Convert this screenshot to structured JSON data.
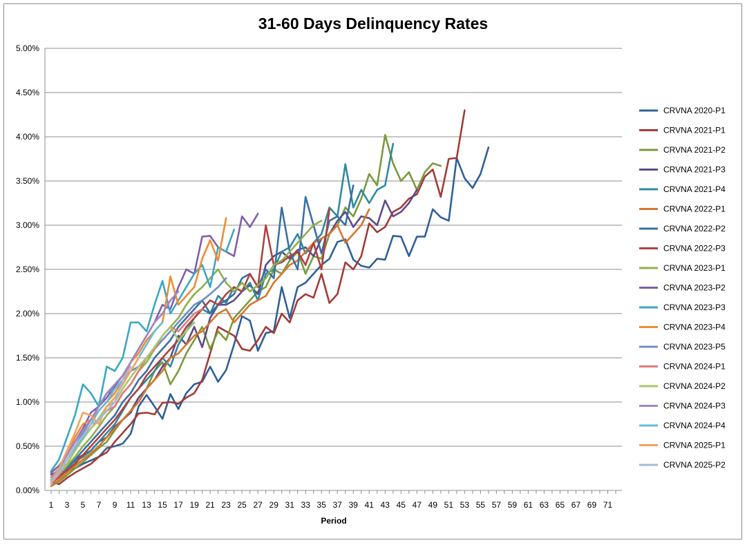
{
  "chart_data": {
    "type": "line",
    "title": "31-60 Days Delinquency Rates",
    "xlabel": "Period",
    "ylabel": "",
    "xlim": [
      1,
      72
    ],
    "ylim": [
      0,
      0.05
    ],
    "grid": true,
    "legend_position": "right",
    "y_ticks": [
      {
        "value": 0.0,
        "label": "0.00%"
      },
      {
        "value": 0.005,
        "label": "0.50%"
      },
      {
        "value": 0.01,
        "label": "1.00%"
      },
      {
        "value": 0.015,
        "label": "1.50%"
      },
      {
        "value": 0.02,
        "label": "2.00%"
      },
      {
        "value": 0.025,
        "label": "2.50%"
      },
      {
        "value": 0.03,
        "label": "3.00%"
      },
      {
        "value": 0.035,
        "label": "3.50%"
      },
      {
        "value": 0.04,
        "label": "4.00%"
      },
      {
        "value": 0.045,
        "label": "4.50%"
      },
      {
        "value": 0.05,
        "label": "5.00%"
      }
    ],
    "x_ticks": [
      1,
      3,
      5,
      7,
      9,
      11,
      13,
      15,
      17,
      19,
      21,
      23,
      25,
      27,
      29,
      31,
      33,
      35,
      37,
      39,
      41,
      43,
      45,
      47,
      49,
      51,
      53,
      55,
      57,
      59,
      61,
      63,
      65,
      67,
      69,
      71
    ],
    "series": [
      {
        "name": "CRVNA 2020-P1",
        "color": "#2f5f98",
        "values": [
          0.0012,
          0.0018,
          0.0022,
          0.0025,
          0.003,
          0.0034,
          0.0038,
          0.0048,
          0.005,
          0.0053,
          0.0064,
          0.0095,
          0.0108,
          0.0095,
          0.0081,
          0.0109,
          0.0092,
          0.011,
          0.012,
          0.0123,
          0.014,
          0.0123,
          0.0136,
          0.0165,
          0.0197,
          0.0192,
          0.0158,
          0.0178,
          0.018,
          0.023,
          0.0195,
          0.023,
          0.0235,
          0.0245,
          0.0255,
          0.0262,
          0.0281,
          0.0284,
          0.0261,
          0.0254,
          0.0252,
          0.0262,
          0.0261,
          0.0288,
          0.0287,
          0.0265,
          0.0287,
          0.0287,
          0.0318,
          0.0309,
          0.0305,
          0.0376,
          0.0353,
          0.0342,
          0.0358,
          0.0388
        ]
      },
      {
        "name": "CRVNA 2021-P1",
        "color": "#a23b36",
        "values": [
          0.001,
          0.0007,
          0.0014,
          0.002,
          0.0025,
          0.003,
          0.0038,
          0.0043,
          0.0055,
          0.0065,
          0.0075,
          0.0087,
          0.0088,
          0.0086,
          0.0099,
          0.01,
          0.0098,
          0.0105,
          0.011,
          0.0125,
          0.0155,
          0.0185,
          0.018,
          0.0175,
          0.016,
          0.0158,
          0.017,
          0.0185,
          0.0178,
          0.02,
          0.019,
          0.0215,
          0.0222,
          0.0218,
          0.0245,
          0.0212,
          0.0222,
          0.0258,
          0.025,
          0.0265,
          0.0302,
          0.0292,
          0.0298,
          0.0315,
          0.032,
          0.033,
          0.0335,
          0.0355,
          0.0363,
          0.0332,
          0.0375,
          0.0376,
          0.043
        ]
      },
      {
        "name": "CRVNA 2021-P2",
        "color": "#7a9a3c",
        "values": [
          0.0005,
          0.001,
          0.0017,
          0.0025,
          0.0032,
          0.004,
          0.0048,
          0.0055,
          0.0068,
          0.008,
          0.009,
          0.0105,
          0.0115,
          0.0135,
          0.0145,
          0.012,
          0.0135,
          0.0155,
          0.017,
          0.0185,
          0.016,
          0.018,
          0.017,
          0.0195,
          0.0205,
          0.0215,
          0.0225,
          0.023,
          0.025,
          0.0245,
          0.026,
          0.027,
          0.0245,
          0.0265,
          0.0262,
          0.029,
          0.03,
          0.032,
          0.031,
          0.033,
          0.0358,
          0.0345,
          0.0402,
          0.037,
          0.035,
          0.036,
          0.034,
          0.036,
          0.037,
          0.0367
        ]
      },
      {
        "name": "CRVNA 2021-P3",
        "color": "#5e4a8a",
        "values": [
          0.0018,
          0.0022,
          0.003,
          0.0035,
          0.004,
          0.0045,
          0.0055,
          0.006,
          0.0072,
          0.008,
          0.0088,
          0.0105,
          0.0115,
          0.0125,
          0.014,
          0.015,
          0.0175,
          0.0165,
          0.0185,
          0.0162,
          0.0195,
          0.021,
          0.021,
          0.0215,
          0.0225,
          0.0232,
          0.0222,
          0.0255,
          0.0265,
          0.027,
          0.0262,
          0.0272,
          0.0275,
          0.0265,
          0.0285,
          0.029,
          0.0305,
          0.0315,
          0.0298,
          0.031,
          0.0308,
          0.03,
          0.0328,
          0.031,
          0.0315,
          0.0325,
          0.034
        ]
      },
      {
        "name": "CRVNA 2021-P4",
        "color": "#2d8aa0",
        "values": [
          0.001,
          0.0018,
          0.0025,
          0.0033,
          0.0038,
          0.0045,
          0.0055,
          0.0065,
          0.0075,
          0.009,
          0.0105,
          0.0115,
          0.0125,
          0.0135,
          0.015,
          0.014,
          0.0165,
          0.018,
          0.0195,
          0.0205,
          0.02,
          0.022,
          0.0212,
          0.023,
          0.0225,
          0.0235,
          0.0215,
          0.0245,
          0.025,
          0.027,
          0.0275,
          0.029,
          0.0268,
          0.028,
          0.029,
          0.032,
          0.031,
          0.0369,
          0.032,
          0.034,
          0.0325,
          0.034,
          0.0345,
          0.0392
        ]
      },
      {
        "name": "CRVNA 2022-P1",
        "color": "#d7752b",
        "values": [
          0.0005,
          0.0012,
          0.002,
          0.0028,
          0.0035,
          0.0042,
          0.005,
          0.006,
          0.007,
          0.008,
          0.009,
          0.01,
          0.0115,
          0.0125,
          0.0135,
          0.015,
          0.0155,
          0.0165,
          0.0175,
          0.018,
          0.019,
          0.02,
          0.0205,
          0.019,
          0.02,
          0.021,
          0.0215,
          0.022,
          0.0235,
          0.0245,
          0.0255,
          0.026,
          0.027,
          0.028,
          0.0285,
          0.029,
          0.03,
          0.028,
          0.029,
          0.03,
          0.0318
        ]
      },
      {
        "name": "CRVNA 2022-P2",
        "color": "#3a6fa5",
        "values": [
          0.0012,
          0.002,
          0.0027,
          0.0035,
          0.0045,
          0.0055,
          0.0065,
          0.0075,
          0.0085,
          0.01,
          0.011,
          0.0125,
          0.0135,
          0.015,
          0.016,
          0.017,
          0.0185,
          0.0195,
          0.0205,
          0.0215,
          0.02,
          0.021,
          0.0215,
          0.0222,
          0.024,
          0.0245,
          0.023,
          0.025,
          0.024,
          0.032,
          0.027,
          0.025,
          0.0332,
          0.03,
          0.0268,
          0.0305,
          0.031,
          0.03,
          0.0345
        ]
      },
      {
        "name": "CRVNA 2022-P3",
        "color": "#b0413e",
        "values": [
          0.0008,
          0.0015,
          0.0023,
          0.003,
          0.004,
          0.005,
          0.006,
          0.007,
          0.008,
          0.0092,
          0.0105,
          0.0115,
          0.013,
          0.014,
          0.015,
          0.016,
          0.017,
          0.0185,
          0.0195,
          0.0205,
          0.0215,
          0.021,
          0.0222,
          0.023,
          0.0225,
          0.0245,
          0.023,
          0.03,
          0.0255,
          0.0258,
          0.0265,
          0.027,
          0.0255,
          0.028,
          0.025,
          0.0318
        ]
      },
      {
        "name": "CRVNA 2023-P1",
        "color": "#8db04a",
        "values": [
          0.001,
          0.0018,
          0.0028,
          0.0038,
          0.005,
          0.006,
          0.0072,
          0.0085,
          0.0095,
          0.011,
          0.012,
          0.0135,
          0.0145,
          0.016,
          0.0175,
          0.0185,
          0.0195,
          0.021,
          0.0222,
          0.023,
          0.024,
          0.025,
          0.0235,
          0.0225,
          0.0235,
          0.0225,
          0.0232,
          0.024,
          0.0255,
          0.026,
          0.027,
          0.028,
          0.029,
          0.03,
          0.0305
        ]
      },
      {
        "name": "CRVNA 2023-P2",
        "color": "#7e5fa8",
        "values": [
          0.002,
          0.0028,
          0.004,
          0.0055,
          0.007,
          0.0088,
          0.0095,
          0.0105,
          0.0118,
          0.013,
          0.0145,
          0.016,
          0.0175,
          0.019,
          0.021,
          0.0205,
          0.023,
          0.025,
          0.0245,
          0.0287,
          0.0288,
          0.0275,
          0.027,
          0.0265,
          0.031,
          0.0298,
          0.0313
        ]
      },
      {
        "name": "CRVNA 2023-P3",
        "color": "#3aa6c4",
        "values": [
          0.0022,
          0.0035,
          0.006,
          0.0085,
          0.012,
          0.011,
          0.0095,
          0.014,
          0.0135,
          0.015,
          0.019,
          0.019,
          0.018,
          0.021,
          0.0237,
          0.02,
          0.0215,
          0.023,
          0.0245,
          0.0255,
          0.023,
          0.0275,
          0.027,
          0.0295
        ]
      },
      {
        "name": "CRVNA 2023-P4",
        "color": "#ef8c31",
        "values": [
          0.001,
          0.0025,
          0.004,
          0.006,
          0.0075,
          0.008,
          0.009,
          0.01,
          0.011,
          0.0125,
          0.0145,
          0.0155,
          0.017,
          0.018,
          0.019,
          0.0242,
          0.021,
          0.022,
          0.023,
          0.0262,
          0.0283,
          0.026,
          0.0308
        ]
      },
      {
        "name": "CRVNA 2023-P5",
        "color": "#6b8fc0",
        "values": [
          0.0012,
          0.0022,
          0.0035,
          0.005,
          0.0065,
          0.008,
          0.0095,
          0.011,
          0.0115,
          0.0125,
          0.0135,
          0.014,
          0.015,
          0.016,
          0.017,
          0.018,
          0.019,
          0.02,
          0.021,
          0.0215,
          0.0222,
          0.023,
          0.024
        ]
      },
      {
        "name": "CRVNA 2024-P1",
        "color": "#e07b76",
        "values": [
          0.0008,
          0.0018,
          0.003,
          0.0045,
          0.006,
          0.007,
          0.008,
          0.009,
          0.0095,
          0.011,
          0.012,
          0.0135,
          0.015,
          0.016,
          0.0175,
          0.0185,
          0.018,
          0.019,
          0.02,
          0.0205
        ]
      },
      {
        "name": "CRVNA 2024-P2",
        "color": "#a9c56e",
        "values": [
          0.001,
          0.002,
          0.003,
          0.0045,
          0.0058,
          0.007,
          0.0082,
          0.0095,
          0.01,
          0.0115,
          0.0128,
          0.014,
          0.015,
          0.0162,
          0.0175,
          0.0185,
          0.017,
          0.018,
          0.019
        ]
      },
      {
        "name": "CRVNA 2024-P3",
        "color": "#9f86c2",
        "values": [
          0.0015,
          0.0025,
          0.004,
          0.0055,
          0.0068,
          0.008,
          0.0095,
          0.011,
          0.012,
          0.013,
          0.0145,
          0.016,
          0.0175,
          0.019,
          0.02,
          0.0215,
          0.0225
        ]
      },
      {
        "name": "CRVNA 2024-P4",
        "color": "#63bcd9",
        "values": [
          0.0012,
          0.0022,
          0.0035,
          0.0048,
          0.006,
          0.0075,
          0.009,
          0.01,
          0.0115,
          0.0125,
          0.0135,
          0.015,
          0.0165,
          0.018,
          0.019
        ]
      },
      {
        "name": "CRVNA 2025-P1",
        "color": "#f5a15a",
        "values": [
          0.001,
          0.0025,
          0.0045,
          0.0065,
          0.0088,
          0.0085,
          0.0075,
          0.0095,
          0.0105,
          0.012,
          0.0135,
          0.015
        ]
      },
      {
        "name": "CRVNA 2025-P2",
        "color": "#a7b6da",
        "values": [
          0.0008,
          0.002,
          0.0035,
          0.005,
          0.0062,
          0.0075,
          0.008,
          0.009,
          0.01,
          0.0125,
          0.014
        ]
      }
    ]
  }
}
